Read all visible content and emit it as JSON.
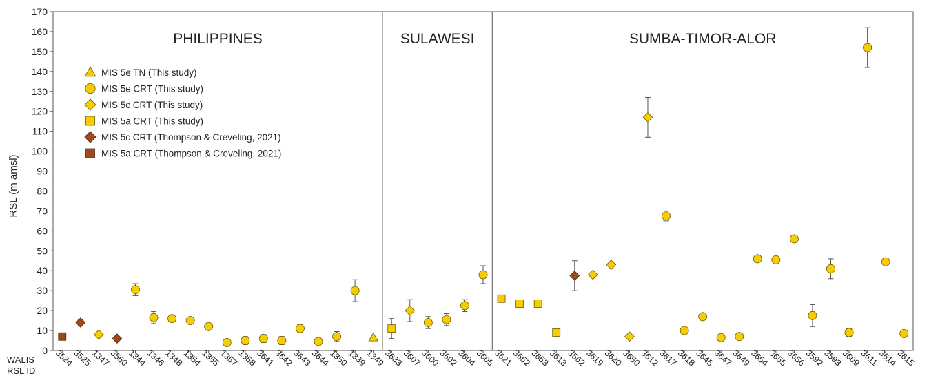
{
  "chart_data": {
    "type": "scatter",
    "ylabel": "RSL (m amsl)",
    "xlabel_lines": [
      "WALIS",
      "RSL ID"
    ],
    "ylim": [
      0,
      170
    ],
    "yticks": [
      0,
      10,
      20,
      30,
      40,
      50,
      60,
      70,
      80,
      90,
      100,
      110,
      120,
      130,
      140,
      150,
      160,
      170
    ],
    "grid": false,
    "legend_position": "top-left",
    "colors": {
      "yellow": "#f7cc00",
      "brown": "#9c4a1c",
      "outline": "#6b5a00"
    },
    "regions": [
      {
        "name": "PHILIPPINES",
        "start": 0,
        "end": 18
      },
      {
        "name": "SULAWESI",
        "start": 18,
        "end": 24
      },
      {
        "name": "SUMBA-TIMOR-ALOR",
        "start": 24,
        "end": 47
      }
    ],
    "series": [
      {
        "name": "MIS 5e TN (This study)",
        "marker": "triangle",
        "color": "#f7cc00"
      },
      {
        "name": "MIS 5e CRT (This study)",
        "marker": "circle",
        "color": "#f7cc00"
      },
      {
        "name": "MIS 5c CRT (This study)",
        "marker": "diamond",
        "color": "#f7cc00"
      },
      {
        "name": "MIS 5a CRT (This study)",
        "marker": "square",
        "color": "#f7cc00"
      },
      {
        "name": "MIS 5c CRT (Thompson & Creveling, 2021)",
        "marker": "diamond",
        "color": "#9c4a1c"
      },
      {
        "name": "MIS 5a CRT (Thompson & Creveling, 2021)",
        "marker": "square",
        "color": "#9c4a1c"
      }
    ],
    "points": [
      {
        "id": "3524",
        "y": 7,
        "err": 0,
        "series": 5
      },
      {
        "id": "3525",
        "y": 14,
        "err": 1.5,
        "series": 4
      },
      {
        "id": "1347",
        "y": 8,
        "err": 0,
        "series": 2
      },
      {
        "id": "3560",
        "y": 6,
        "err": 0,
        "series": 4
      },
      {
        "id": "1344",
        "y": 30.5,
        "err": 3,
        "series": 1
      },
      {
        "id": "1346",
        "y": 16.5,
        "err": 3,
        "series": 1
      },
      {
        "id": "1348",
        "y": 16,
        "err": 1,
        "series": 1
      },
      {
        "id": "1354",
        "y": 15,
        "err": 1,
        "series": 1
      },
      {
        "id": "1355",
        "y": 12,
        "err": 1,
        "series": 1
      },
      {
        "id": "1357",
        "y": 4,
        "err": 1,
        "series": 1
      },
      {
        "id": "1358",
        "y": 5,
        "err": 2,
        "series": 1
      },
      {
        "id": "3641",
        "y": 6,
        "err": 2,
        "series": 1
      },
      {
        "id": "3642",
        "y": 5,
        "err": 2,
        "series": 1
      },
      {
        "id": "3643",
        "y": 11,
        "err": 2,
        "series": 1
      },
      {
        "id": "3644",
        "y": 4.5,
        "err": 1,
        "series": 1
      },
      {
        "id": "1350",
        "y": 7,
        "err": 2.5,
        "series": 1
      },
      {
        "id": "1339",
        "y": 30,
        "err": 5.5,
        "series": 1
      },
      {
        "id": "1349",
        "y": 6.5,
        "err": 0,
        "series": 0
      },
      {
        "id": "3633",
        "y": 11,
        "err": 5,
        "series": 3
      },
      {
        "id": "3607",
        "y": 20,
        "err": 5.5,
        "series": 2
      },
      {
        "id": "3600",
        "y": 14,
        "err": 3,
        "series": 1
      },
      {
        "id": "3602",
        "y": 15.5,
        "err": 3,
        "series": 1
      },
      {
        "id": "3604",
        "y": 22.5,
        "err": 3,
        "series": 1
      },
      {
        "id": "3605",
        "y": 38,
        "err": 4.5,
        "series": 1
      },
      {
        "id": "3621",
        "y": 26,
        "err": 0,
        "series": 3
      },
      {
        "id": "3652",
        "y": 23.5,
        "err": 0,
        "series": 3
      },
      {
        "id": "3653",
        "y": 23.5,
        "err": 0,
        "series": 3
      },
      {
        "id": "3613",
        "y": 9,
        "err": 0,
        "series": 3
      },
      {
        "id": "3562",
        "y": 37.5,
        "err": 7.5,
        "series": 4
      },
      {
        "id": "3619",
        "y": 38,
        "err": 0,
        "series": 2
      },
      {
        "id": "3620",
        "y": 43,
        "err": 0,
        "series": 2
      },
      {
        "id": "3650",
        "y": 7,
        "err": 0,
        "series": 2
      },
      {
        "id": "3612",
        "y": 117,
        "err": 10,
        "series": 2
      },
      {
        "id": "3617",
        "y": 67.5,
        "err": 2.5,
        "series": 1
      },
      {
        "id": "3618",
        "y": 10,
        "err": 0,
        "series": 1
      },
      {
        "id": "3645",
        "y": 17,
        "err": 0,
        "series": 1
      },
      {
        "id": "3647",
        "y": 6.5,
        "err": 0,
        "series": 1
      },
      {
        "id": "3649",
        "y": 7,
        "err": 0,
        "series": 1
      },
      {
        "id": "3654",
        "y": 46,
        "err": 0,
        "series": 1
      },
      {
        "id": "3655",
        "y": 45.5,
        "err": 0,
        "series": 1
      },
      {
        "id": "3656",
        "y": 56,
        "err": 0,
        "series": 1
      },
      {
        "id": "3592",
        "y": 17.5,
        "err": 5.5,
        "series": 1
      },
      {
        "id": "3593",
        "y": 41,
        "err": 5,
        "series": 1
      },
      {
        "id": "3609",
        "y": 9,
        "err": 2,
        "series": 1
      },
      {
        "id": "3611",
        "y": 152,
        "err": 10,
        "series": 1
      },
      {
        "id": "3614",
        "y": 44.5,
        "err": 0,
        "series": 1
      },
      {
        "id": "3615",
        "y": 8.5,
        "err": 0,
        "series": 1
      }
    ]
  }
}
